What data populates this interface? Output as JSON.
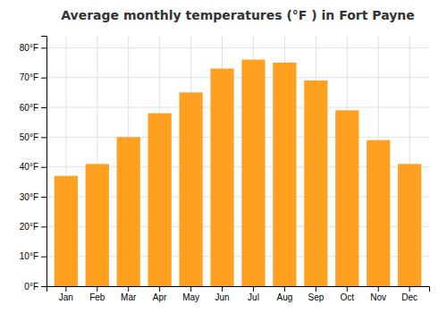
{
  "chart_data": {
    "type": "bar",
    "title": "Average monthly temperatures (°F ) in Fort Payne",
    "categories": [
      "Jan",
      "Feb",
      "Mar",
      "Apr",
      "May",
      "Jun",
      "Jul",
      "Aug",
      "Sep",
      "Oct",
      "Nov",
      "Dec"
    ],
    "values": [
      37,
      41,
      50,
      58,
      65,
      73,
      76,
      75,
      69,
      59,
      49,
      41
    ],
    "color": "#FFA020",
    "ylim": [
      0,
      84
    ],
    "yticks": [
      {
        "value": 0,
        "label": "0°F"
      },
      {
        "value": 10,
        "label": "10°F"
      },
      {
        "value": 20,
        "label": "20°F"
      },
      {
        "value": 30,
        "label": "30°F"
      },
      {
        "value": 40,
        "label": "40°F"
      },
      {
        "value": 50,
        "label": "50°F"
      },
      {
        "value": 60,
        "label": "60°F"
      },
      {
        "value": 70,
        "label": "70°F"
      },
      {
        "value": 80,
        "label": "80°F"
      }
    ],
    "grid": true
  }
}
